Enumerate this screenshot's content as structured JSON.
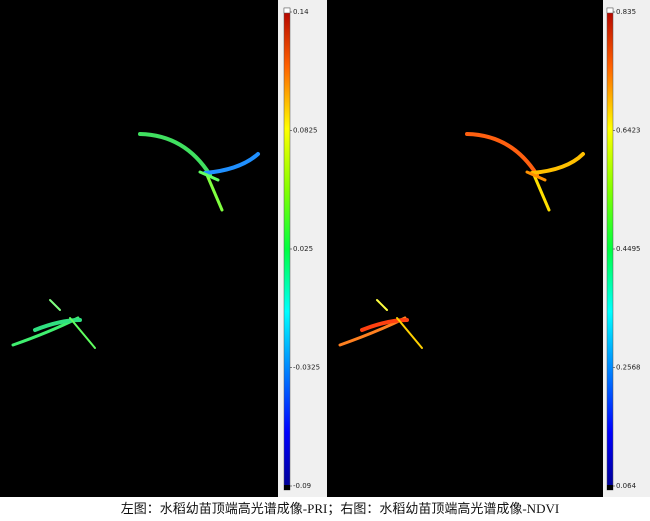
{
  "panels": [
    {
      "colorbar": {
        "ticks": [
          "0.14",
          "0.0825",
          "0.025",
          "-0.0325",
          "-0.09"
        ]
      }
    },
    {
      "colorbar": {
        "ticks": [
          "0.835",
          "0.6423",
          "0.4495",
          "0.2568",
          "0.064"
        ]
      }
    }
  ],
  "caption": "左图：水稻幼苗顶端高光谱成像-PRI；右图：水稻幼苗顶端高光谱成像-NDVI"
}
